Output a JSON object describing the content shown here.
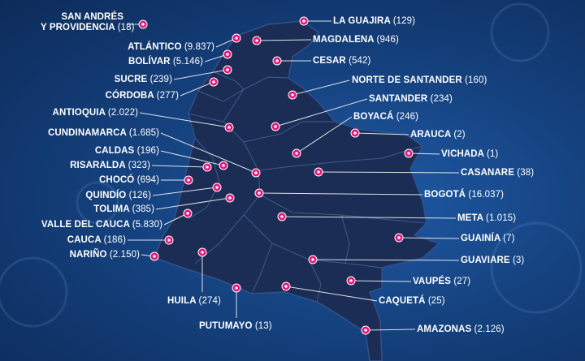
{
  "regions": [
    {
      "name": "SAN ANDRÉS",
      "name2": "Y PROVIDENCIA",
      "count": "18"
    },
    {
      "name": "ATLÁNTICO",
      "count": "9.837"
    },
    {
      "name": "BOLÍVAR",
      "count": "5.146"
    },
    {
      "name": "SUCRE",
      "count": "239"
    },
    {
      "name": "CÓRDOBA",
      "count": "277"
    },
    {
      "name": "ANTIOQUIA",
      "count": "2.022"
    },
    {
      "name": "CUNDINAMARCA",
      "count": "1.685"
    },
    {
      "name": "CALDAS",
      "count": "196"
    },
    {
      "name": "RISARALDA",
      "count": "323"
    },
    {
      "name": "CHOCÓ",
      "count": "694"
    },
    {
      "name": "QUINDÍO",
      "count": "126"
    },
    {
      "name": "TOLIMA",
      "count": "385"
    },
    {
      "name": "VALLE DEL CAUCA",
      "count": "5.830"
    },
    {
      "name": "CAUCA",
      "count": "186"
    },
    {
      "name": "NARIÑO",
      "count": "2.150"
    },
    {
      "name": "HUILA",
      "count": "274"
    },
    {
      "name": "PUTUMAYO",
      "count": "13"
    },
    {
      "name": "LA GUAJIRA",
      "count": "129"
    },
    {
      "name": "MAGDALENA",
      "count": "946"
    },
    {
      "name": "CESAR",
      "count": "542"
    },
    {
      "name": "NORTE DE SANTANDER",
      "count": "160"
    },
    {
      "name": "SANTANDER",
      "count": "234"
    },
    {
      "name": "BOYACÁ",
      "count": "246"
    },
    {
      "name": "ARAUCA",
      "count": "2"
    },
    {
      "name": "VICHADA",
      "count": "1"
    },
    {
      "name": "CASANARE",
      "count": "38"
    },
    {
      "name": "BOGOTÁ",
      "count": "16.037"
    },
    {
      "name": "META",
      "count": "1.015"
    },
    {
      "name": "GUAINÍA",
      "count": "7"
    },
    {
      "name": "GUAVIARE",
      "count": "3"
    },
    {
      "name": "VAUPÉS",
      "count": "27"
    },
    {
      "name": "CAQUETÁ",
      "count": "25"
    },
    {
      "name": "AMAZONAS",
      "count": "2.126"
    }
  ],
  "colors": {
    "map_fill": "#1b2d54",
    "border": "#3f5a8c",
    "marker": "#e8137a",
    "leader": "#ffffff"
  }
}
